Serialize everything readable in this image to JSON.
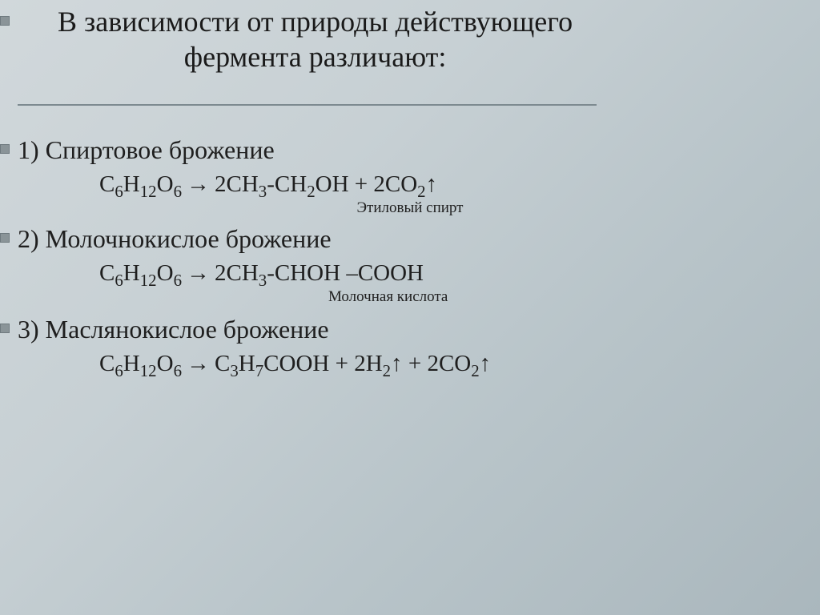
{
  "colors": {
    "background_gradient_from": "#d1d8db",
    "background_gradient_to": "#aab7bd",
    "text": "#1f1f1f",
    "bullet_fill": "#8a9498",
    "bullet_border": "#6f7a7f",
    "divider": "#7d8a90"
  },
  "typography": {
    "title_fontsize": 36,
    "body_fontsize": 32,
    "equation_fontsize": 29,
    "label_fontsize": 19,
    "font_family": "Times New Roman"
  },
  "title": {
    "line1": "В зависимости от природы действующего",
    "line2": "фермента различают:"
  },
  "items": [
    {
      "heading": "1) Спиртовое брожение",
      "equation": "С6Н12О6 → 2СН3-СН2ОН + 2СО2↑",
      "label": "Этиловый спирт"
    },
    {
      "heading": "2) Молочнокислое брожение",
      "equation": "С6Н12О6 → 2СН3-СНОН –СООН",
      "label": "Молочная кислота"
    },
    {
      "heading": "3) Маслянокислое брожение",
      "equation": "С6Н12О6 → С3Н7СООН + 2Н2↑ + 2СО2↑",
      "label": ""
    }
  ]
}
